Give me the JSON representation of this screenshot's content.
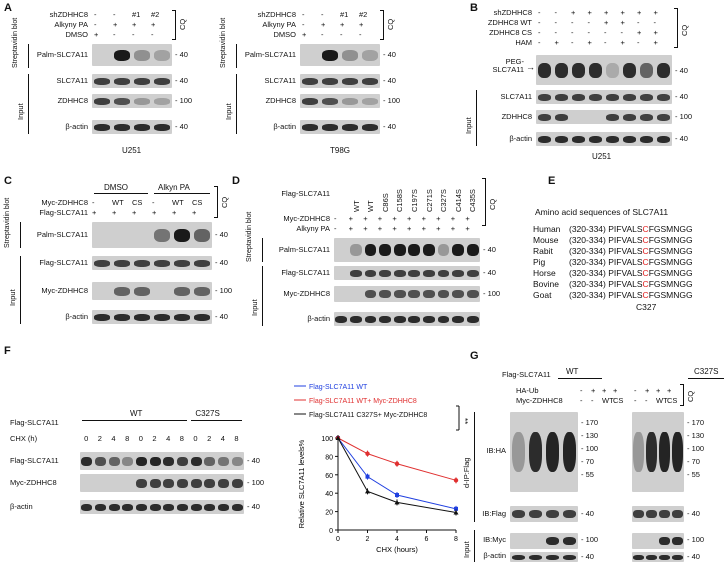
{
  "panels": {
    "A": "A",
    "B": "B",
    "C": "C",
    "D": "D",
    "E": "E",
    "F": "F",
    "G": "G"
  },
  "A": {
    "rows_top": [
      "shZDHHC8",
      "Alkyny PA",
      "DMSO"
    ],
    "signs": [
      [
        "-",
        "-",
        "#1",
        "#2"
      ],
      [
        "-",
        "+",
        "+",
        "+"
      ],
      [
        "+",
        "-",
        "-",
        "-"
      ]
    ],
    "cq": "CQ",
    "blots": [
      "Palm-SLC7A11",
      "SLC7A11",
      "ZDHHC8",
      "β-actin"
    ],
    "mw": [
      "40",
      "40",
      "100",
      "40"
    ],
    "group_strep": "Streptavidin blot",
    "group_input": "Input",
    "cell_left": "U251",
    "cell_right": "T98G"
  },
  "B": {
    "rows_top": [
      "shZDHHC8",
      "ZDHHC8 WT",
      "ZDHHC8 CS",
      "HAM"
    ],
    "signs": [
      [
        "-",
        "-",
        "+",
        "+",
        "+",
        "+",
        "+",
        "+"
      ],
      [
        "-",
        "-",
        "-",
        "-",
        "+",
        "+",
        "-",
        "-"
      ],
      [
        "-",
        "-",
        "-",
        "-",
        "-",
        "-",
        "+",
        "+"
      ],
      [
        "-",
        "+",
        "-",
        "+",
        "-",
        "+",
        "-",
        "+"
      ]
    ],
    "cq": "CQ",
    "peg": "PEG-SLC7A11",
    "blots": [
      "SLC7A11",
      "ZDHHC8",
      "β-actin"
    ],
    "mw": [
      "40",
      "40",
      "100",
      "40"
    ],
    "group_input": "Input",
    "cell": "U251"
  },
  "C": {
    "top": [
      "DMSO",
      "Alkyn PA"
    ],
    "rows_top": [
      "Myc-ZDHHC8",
      "Flag-SLC7A11"
    ],
    "signs": [
      [
        "-",
        "WT",
        "CS",
        "-",
        "WT",
        "CS"
      ],
      [
        "+",
        "+",
        "+",
        "+",
        "+",
        "+"
      ]
    ],
    "cq": "CQ",
    "blots": [
      "Palm-SLC7A11",
      "Flag-SLC7A11",
      "Myc-ZDHHC8",
      "β-actin"
    ],
    "mw": [
      "40",
      "40",
      "100",
      "40"
    ],
    "group_strep": "Streptavidin blot",
    "group_input": "Input"
  },
  "D": {
    "mutants": [
      "WT",
      "WT",
      "C86S",
      "C158S",
      "C197S",
      "C271S",
      "C327S",
      "C414S",
      "C435S"
    ],
    "rows_top": [
      "Flag-SLC7A11",
      "Myc-ZDHHC8",
      "Alkyny PA"
    ],
    "signs": [
      [
        "-",
        "+",
        "+",
        "+",
        "+",
        "+",
        "+",
        "+",
        "+",
        "+"
      ],
      [
        "-",
        "+",
        "+",
        "+",
        "+",
        "+",
        "+",
        "+",
        "+",
        "+"
      ]
    ],
    "cq": "CQ",
    "blots": [
      "Palm-SLC7A11",
      "Flag-SLC7A11",
      "Myc-ZDHHC8",
      "β-actin"
    ],
    "mw": [
      "40",
      "40",
      "100"
    ],
    "group_strep": "Streptavidin blot",
    "group_input": "Input"
  },
  "E": {
    "title": "Amino acid sequences of SLC7A11",
    "rows": [
      {
        "species": "Human",
        "range": "(320-334)",
        "pre": "PIFVALS",
        "c": "C",
        "post": "FGSMNGG"
      },
      {
        "species": "Mouse",
        "range": "(320-334)",
        "pre": "PIFVALS",
        "c": "C",
        "post": "FGSMNGG"
      },
      {
        "species": "Rabit",
        "range": "(320-334)",
        "pre": "PIFVALS",
        "c": "C",
        "post": "FGSMNGG"
      },
      {
        "species": "Pig",
        "range": "(320-334)",
        "pre": "PIFVALS",
        "c": "C",
        "post": "FGSMNGG"
      },
      {
        "species": "Horse",
        "range": "(320-334)",
        "pre": "PIFVALS",
        "c": "C",
        "post": "FGSMNGG"
      },
      {
        "species": "Bovine",
        "range": "(320-334)",
        "pre": "PIFVALS",
        "c": "C",
        "post": "FGSMNGG"
      },
      {
        "species": "Goat",
        "range": "(320-334)",
        "pre": "PIFVALS",
        "c": "C",
        "post": "FGSMNGG"
      }
    ],
    "footer": "C327",
    "accent": "#e02020"
  },
  "F": {
    "row_top": "Flag-SLC7A11",
    "wt": "WT",
    "mut": "C327S",
    "chx_label": "CHX (h)",
    "chx": [
      "0",
      "2",
      "4",
      "8",
      "0",
      "2",
      "4",
      "8",
      "0",
      "2",
      "4",
      "8"
    ],
    "blots": [
      "Flag-SLC7A11",
      "Myc-ZDHHC8",
      "β-actin"
    ],
    "mw": [
      "40",
      "100",
      "40"
    ]
  },
  "chart_data": {
    "type": "line",
    "xlabel": "CHX (hours)",
    "ylabel": "Relative SLC7A11 levels%",
    "x": [
      0,
      2,
      4,
      8
    ],
    "xticks": [
      "0",
      "2",
      "4",
      "6",
      "8"
    ],
    "yticks": [
      "0",
      "20",
      "40",
      "60",
      "80",
      "100"
    ],
    "ylim": [
      0,
      100
    ],
    "xlim": [
      0,
      8
    ],
    "significance": "**",
    "legend": "top",
    "series": [
      {
        "name": "Flag-SLC7A11 WT",
        "color": "#2040e0",
        "marker": "square",
        "values": [
          100,
          58,
          38,
          23
        ]
      },
      {
        "name": "Flag-SLC7A11 WT+ Myc-ZDHHC8",
        "color": "#e03030",
        "marker": "circle",
        "values": [
          100,
          83,
          72,
          54
        ]
      },
      {
        "name": "Flag-SLC7A11 C327S+ Myc-ZDHHC8",
        "color": "#111111",
        "marker": "triangle",
        "values": [
          100,
          42,
          30,
          19
        ]
      }
    ]
  },
  "G": {
    "row_top": "Flag-SLC7A11",
    "wt": "WT",
    "mut": "C327S",
    "rows": [
      "HA-Ub",
      "Myc-ZDHHC8"
    ],
    "signs": [
      [
        "-",
        "+",
        "+",
        "+"
      ],
      [
        "-",
        "-",
        "WT",
        "CS"
      ]
    ],
    "cq": "CQ",
    "ip": "d-IP:Flag",
    "input": "Input",
    "blots": [
      "IB:HA",
      "IB:Flag",
      "IB:Myc",
      "β-actin"
    ],
    "mw_ha": [
      "170",
      "130",
      "100",
      "70",
      "55"
    ],
    "mw": [
      "40",
      "100",
      "40"
    ]
  }
}
